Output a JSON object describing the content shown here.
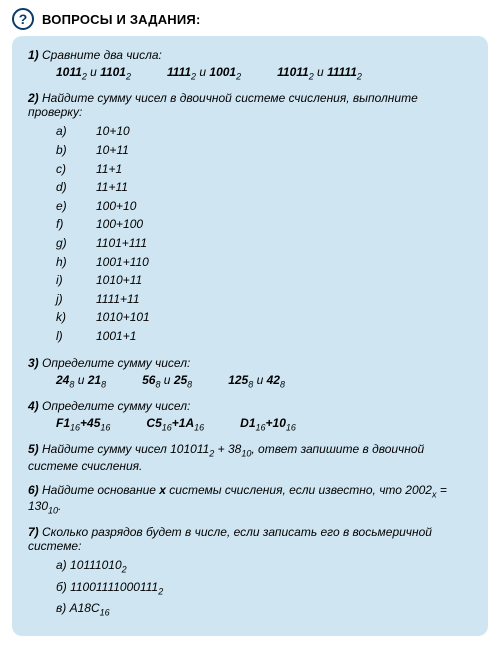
{
  "header": {
    "qmark": "?",
    "title": "ВОПРОСЫ И ЗАДАНИЯ:"
  },
  "t1": {
    "num": "1)",
    "text": "Сравните два числа:",
    "pairs": [
      {
        "a": "1011",
        "ab": "2",
        "sep": " и ",
        "b": "1101",
        "bb": "2"
      },
      {
        "a": "1111",
        "ab": "2",
        "sep": " и ",
        "b": "1001",
        "bb": "2"
      },
      {
        "a": "11011",
        "ab": "2",
        "sep": " и ",
        "b": "11111",
        "bb": "2"
      }
    ]
  },
  "t2": {
    "num": "2)",
    "text": "Найдите сумму чисел в двоичной системе счисления, выполните проверку:",
    "items": [
      {
        "lbl": "a)",
        "val": "10+10"
      },
      {
        "lbl": "b)",
        "val": "10+11"
      },
      {
        "lbl": "c)",
        "val": "11+1"
      },
      {
        "lbl": "d)",
        "val": "11+11"
      },
      {
        "lbl": "e)",
        "val": "100+10"
      },
      {
        "lbl": "f)",
        "val": "100+100"
      },
      {
        "lbl": "g)",
        "val": "1101+111"
      },
      {
        "lbl": "h)",
        "val": "1001+110"
      },
      {
        "lbl": "i)",
        "val": "1010+11"
      },
      {
        "lbl": "j)",
        "val": "1111+11"
      },
      {
        "lbl": "k)",
        "val": "1010+101"
      },
      {
        "lbl": "l)",
        "val": "1001+1"
      }
    ]
  },
  "t3": {
    "num": "3)",
    "text": "Определите сумму чисел:",
    "pairs": [
      {
        "a": "24",
        "ab": "8",
        "sep": " и ",
        "b": "21",
        "bb": "8"
      },
      {
        "a": "56",
        "ab": "8",
        "sep": " и ",
        "b": "25",
        "bb": "8"
      },
      {
        "a": "125",
        "ab": "8",
        "sep": " и ",
        "b": "42",
        "bb": "8"
      }
    ]
  },
  "t4": {
    "num": "4)",
    "text": "Определите сумму чисел:",
    "pairs": [
      {
        "a": "F1",
        "ab": "16",
        "sep": "+",
        "b": "45",
        "bb": "16"
      },
      {
        "a": "C5",
        "ab": "16",
        "sep": "+",
        "b": "1A",
        "bb": "16"
      },
      {
        "a": "D1",
        "ab": "16",
        "sep": "+",
        "b": "10",
        "bb": "16"
      }
    ]
  },
  "t5": {
    "num": "5)",
    "pre": "Найдите сумму чисел ",
    "a": "101011",
    "ab": "2",
    "plus": " + ",
    "b": "38",
    "bb": "10",
    "post": ", ответ запишите в двоичной системе счисления."
  },
  "t6": {
    "num": "6)",
    "pre": "Найдите основание ",
    "xword": "x",
    "mid": " системы счисления, если известно, что ",
    "a": "2002",
    "ab": "x",
    "eq": " = ",
    "b": "130",
    "bb": "10",
    "post": "."
  },
  "t7": {
    "num": "7)",
    "text": "Сколько разрядов будет в числе, если записать его в восьмеричной системе:",
    "items": [
      {
        "lbl": "а)",
        "val": "10111010",
        "sub": "2"
      },
      {
        "lbl": "б)",
        "val": "11001111000111",
        "sub": "2"
      },
      {
        "lbl": "в)",
        "val": "A18C",
        "sub": "16"
      }
    ]
  }
}
